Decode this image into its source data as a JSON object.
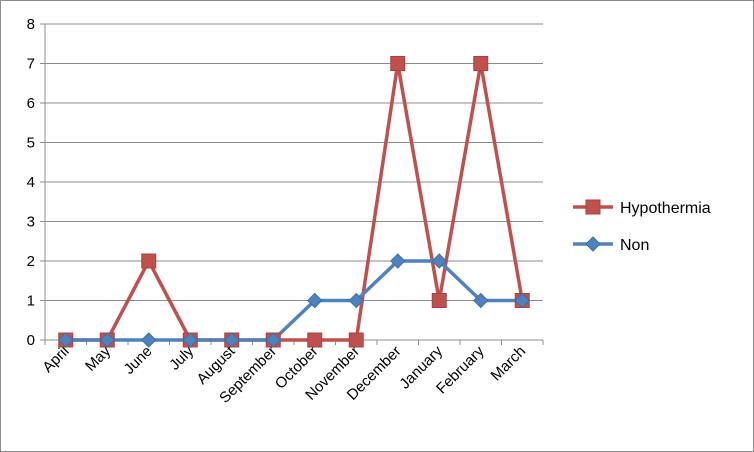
{
  "chart_data": {
    "type": "line",
    "title": "",
    "xlabel": "",
    "ylabel": "",
    "categories": [
      "April",
      "May",
      "June",
      "July",
      "August",
      "September",
      "October",
      "November",
      "December",
      "January",
      "February",
      "March"
    ],
    "ylim": [
      0,
      8
    ],
    "yticks": [
      0,
      1,
      2,
      3,
      4,
      5,
      6,
      7,
      8
    ],
    "grid": true,
    "legend_position": "right",
    "series": [
      {
        "name": "Hypothermia",
        "color": "#c0504d",
        "marker": "square",
        "values": [
          0,
          0,
          2,
          0,
          0,
          0,
          0,
          0,
          7,
          1,
          7,
          1
        ]
      },
      {
        "name": "Non",
        "color": "#4f81bd",
        "marker": "diamond",
        "values": [
          0,
          0,
          0,
          0,
          0,
          0,
          1,
          1,
          2,
          2,
          1,
          1
        ]
      }
    ]
  }
}
